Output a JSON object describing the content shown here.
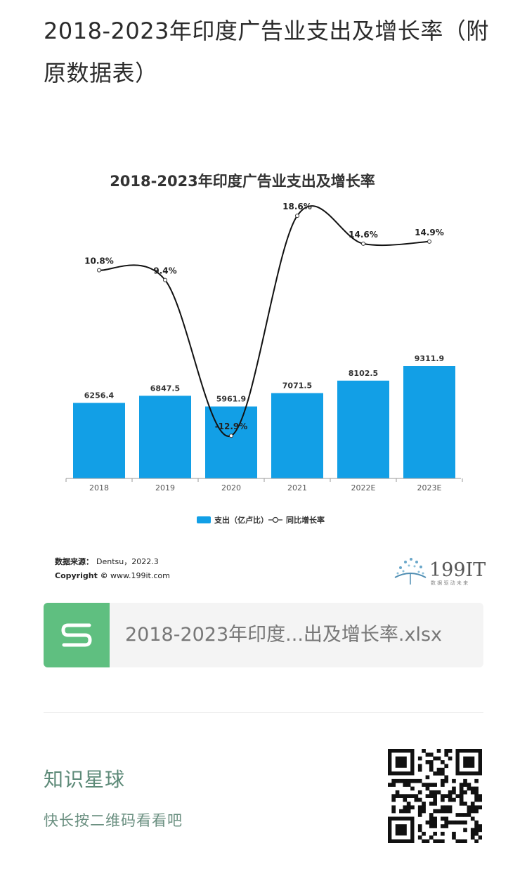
{
  "article": {
    "title": "2018-2023年印度广告业支出及增长率（附原数据表）"
  },
  "chart_data": {
    "type": "bar",
    "title": "2018-2023年印度广告业支出及增长率",
    "categories": [
      "2018",
      "2019",
      "2020",
      "2021",
      "2022E",
      "2023E"
    ],
    "series": [
      {
        "name": "支出（亿卢比）",
        "type": "bar",
        "values": [
          6256.4,
          6847.5,
          5961.9,
          7071.5,
          8102.5,
          9311.9
        ],
        "labels": [
          "6256.4",
          "6847.5",
          "5961.9",
          "7071.5",
          "8102.5",
          "9311.9"
        ],
        "color": "#129fe6"
      },
      {
        "name": "同比增长率",
        "type": "line",
        "values": [
          10.8,
          9.4,
          -12.9,
          18.6,
          14.6,
          14.9
        ],
        "labels": [
          "10.8%",
          "9.4%",
          "-12.9%",
          "18.6%",
          "14.6%",
          "14.9%"
        ],
        "color": "#111111"
      }
    ],
    "legend": {
      "position": "bottom",
      "bar_label": "支出（亿卢比）",
      "line_label": "同比增长率"
    },
    "grid": false
  },
  "chart_footer": {
    "source_label": "数据来源：",
    "source_value": "Dentsu，2022.3",
    "copyright_label": "Copyright ©",
    "copyright_value": "www.199it.com",
    "logo_text": "199IT",
    "logo_slogan": "数 据 驱 动 未 来"
  },
  "file": {
    "icon": "spreadsheet-s-icon",
    "name": "2018-2023年印度...出及增长率.xlsx",
    "icon_color": "#5fbf80"
  },
  "promo": {
    "title": "知识星球",
    "subtitle": "快长按二维码看看吧",
    "accent": "#5d8a78"
  }
}
